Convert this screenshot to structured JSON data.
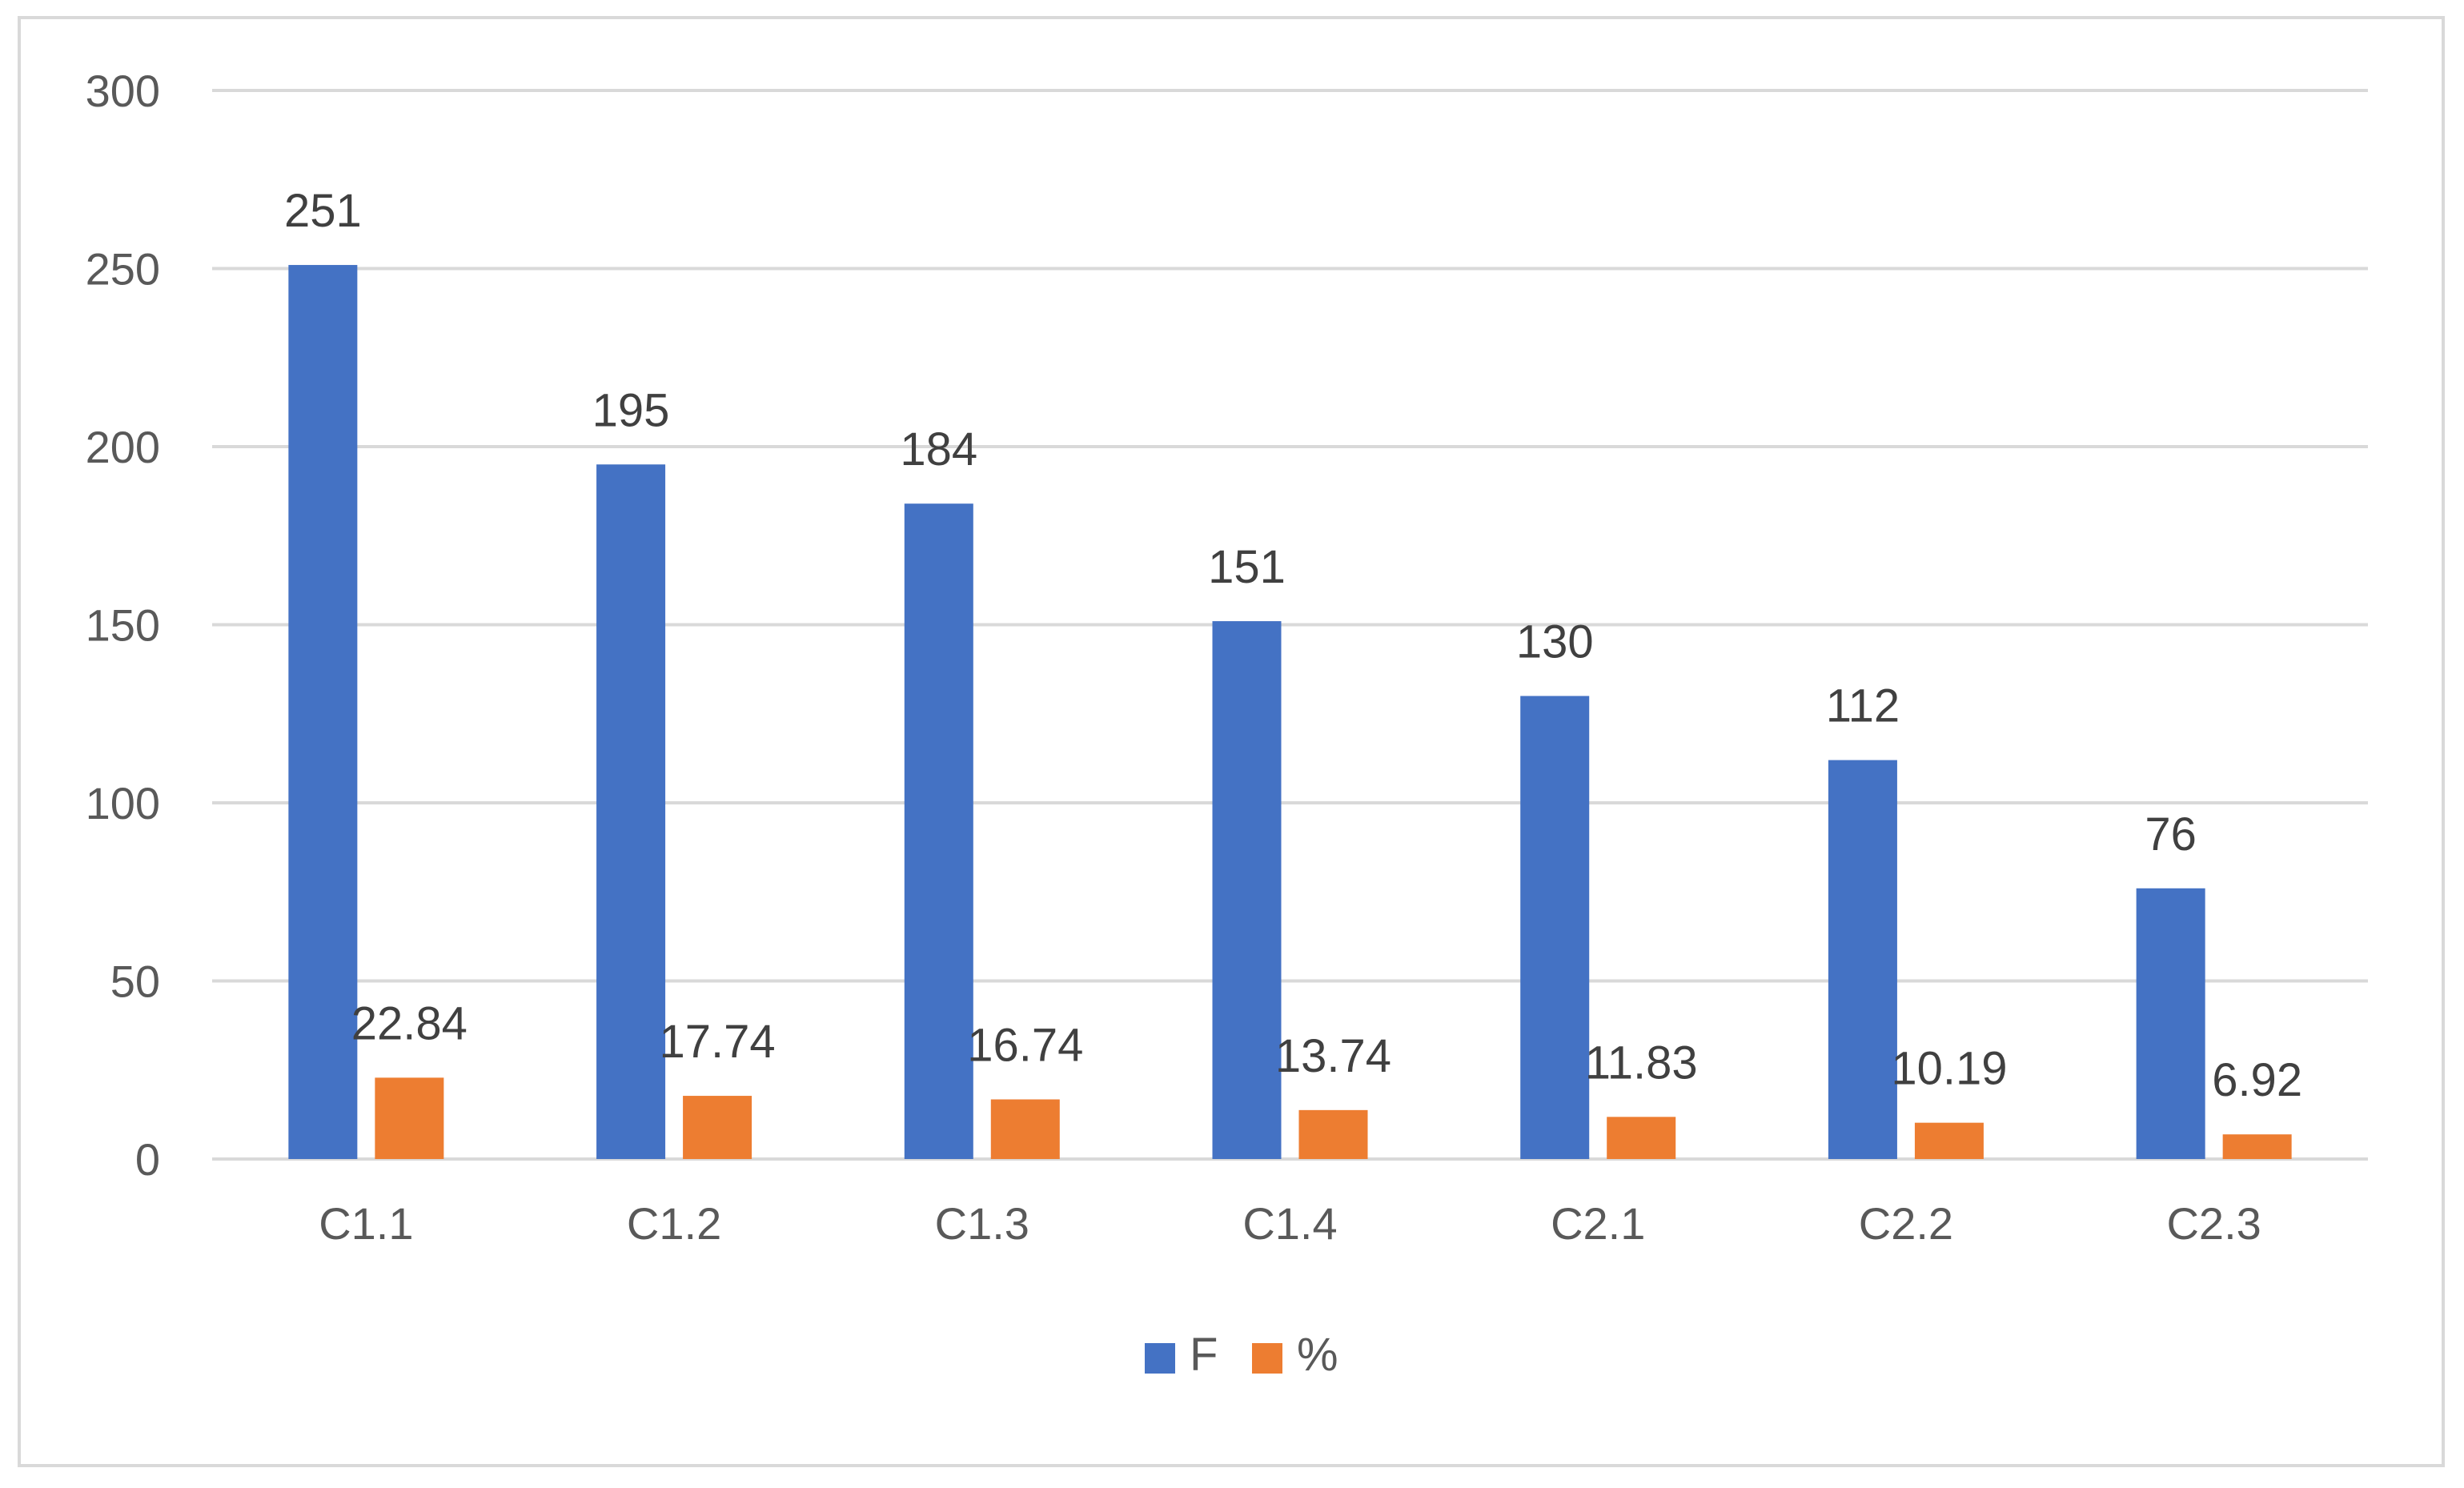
{
  "chart_data": {
    "type": "bar",
    "title": "",
    "xlabel": "",
    "ylabel": "",
    "categories": [
      "C1.1",
      "C1.2",
      "C1.3",
      "C1.4",
      "C2.1",
      "C2.2",
      "C2.3"
    ],
    "series": [
      {
        "name": "F",
        "color": "#4472c4",
        "values": [
          251,
          195,
          184,
          151,
          130,
          112,
          76
        ],
        "labels": [
          "251",
          "195",
          "184",
          "151",
          "130",
          "112",
          "76"
        ]
      },
      {
        "name": "%",
        "color": "#ed7d31",
        "values": [
          22.84,
          17.74,
          16.74,
          13.74,
          11.83,
          10.19,
          6.92
        ],
        "labels": [
          "22.84",
          "17.74",
          "16.74",
          "13.74",
          "11.83",
          "10.19",
          "6.92"
        ]
      }
    ],
    "ylim": [
      0,
      300
    ],
    "yticks": [
      "0",
      "50",
      "100",
      "150",
      "200",
      "250",
      "300"
    ],
    "grid": true,
    "legend_position": "bottom"
  }
}
